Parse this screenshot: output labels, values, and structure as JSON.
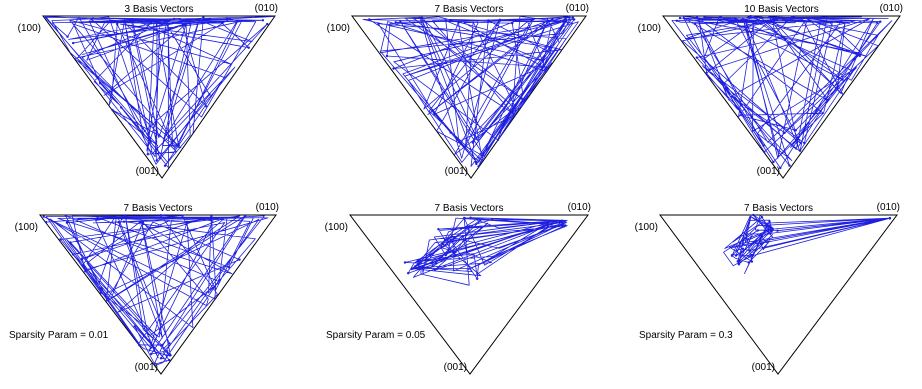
{
  "colors": {
    "trajectory": "#1f1fe0",
    "triangle": "#000000",
    "background": "#ffffff"
  },
  "panels": [
    {
      "title": "3 Basis Vectors",
      "vertices": [
        "(100)",
        "(010)",
        "(001)"
      ],
      "sparsity": "",
      "style": "spread",
      "seed": 11
    },
    {
      "title": "7 Basis Vectors",
      "vertices": [
        "(100)",
        "(010)",
        "(001)"
      ],
      "sparsity": "",
      "style": "spread",
      "seed": 23
    },
    {
      "title": "10 Basis Vectors",
      "vertices": [
        "(100)",
        "(010)",
        "(001)"
      ],
      "sparsity": "",
      "style": "spread",
      "seed": 37
    },
    {
      "title": "7 Basis Vectors",
      "vertices": [
        "(100)",
        "(010)",
        "(001)"
      ],
      "sparsity": "Sparsity Param = 0.01",
      "style": "spread",
      "seed": 41
    },
    {
      "title": "7 Basis Vectors",
      "vertices": [
        "(100)",
        "(010)",
        "(001)"
      ],
      "sparsity": "Sparsity Param = 0.05",
      "style": "medium",
      "seed": 53
    },
    {
      "title": "7 Basis Vectors",
      "vertices": [
        "(100)",
        "(010)",
        "(001)"
      ],
      "sparsity": "Sparsity Param = 0.3",
      "style": "compact",
      "seed": 67
    }
  ]
}
